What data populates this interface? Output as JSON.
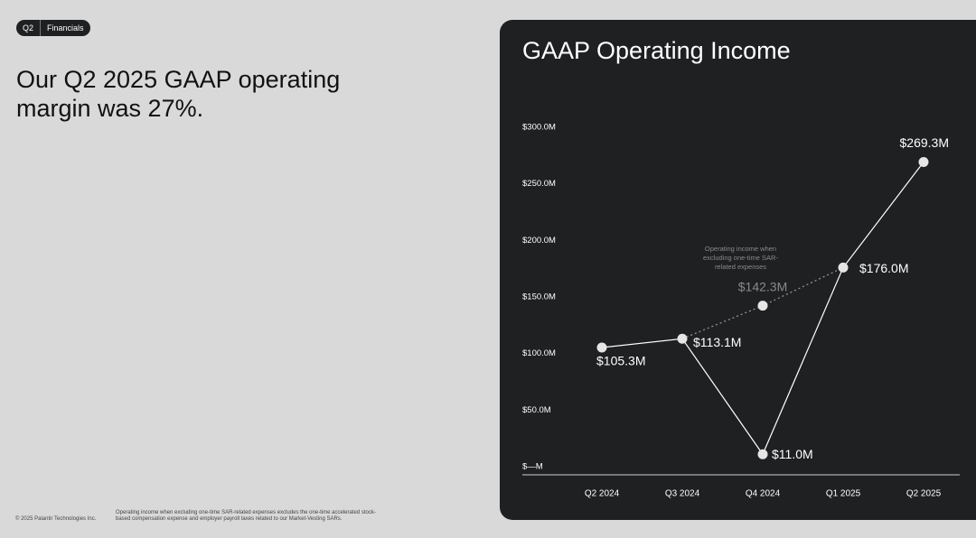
{
  "header": {
    "tag": "Q2",
    "section": "Financials"
  },
  "headline": "Our Q2 2025 GAAP operating margin was 27%.",
  "footer": {
    "copyright": "© 2025 Palantir Technologies Inc.",
    "footnote": "Operating income when excluding one-time SAR-related expenses excludes the one-time accelerated stock-based compensation expense and employer payroll taxes related to our Market-Vesting SARs."
  },
  "chart_data": {
    "type": "line",
    "title": "GAAP Operating Income",
    "categories": [
      "Q2 2024",
      "Q3 2024",
      "Q4 2024",
      "Q1 2025",
      "Q2 2025"
    ],
    "series": [
      {
        "color": "#ffffff",
        "values": [
          105.3,
          113.1,
          11.0,
          176.0,
          269.3
        ],
        "value_labels": [
          "$105.3M",
          "$113.1M",
          "$11.0M",
          "$176.0M",
          "$269.3M"
        ]
      },
      {
        "name": "Operating income when excluding one-time SAR-related expenses",
        "color": "#9a9a9a",
        "style": "dotted",
        "values": [
          null,
          113.1,
          142.3,
          176.0,
          null
        ],
        "value_labels": [
          null,
          null,
          "$142.3M",
          null,
          null
        ]
      }
    ],
    "ylim": [
      0,
      300
    ],
    "yticks": [
      {
        "value": 0,
        "label": "$—M"
      },
      {
        "value": 50,
        "label": "$50.0M"
      },
      {
        "value": 100,
        "label": "$100.0M"
      },
      {
        "value": 150,
        "label": "$150.0M"
      },
      {
        "value": 200,
        "label": "$200.0M"
      },
      {
        "value": 250,
        "label": "$250.0M"
      },
      {
        "value": 300,
        "label": "$300.0M"
      }
    ],
    "grid": false
  }
}
